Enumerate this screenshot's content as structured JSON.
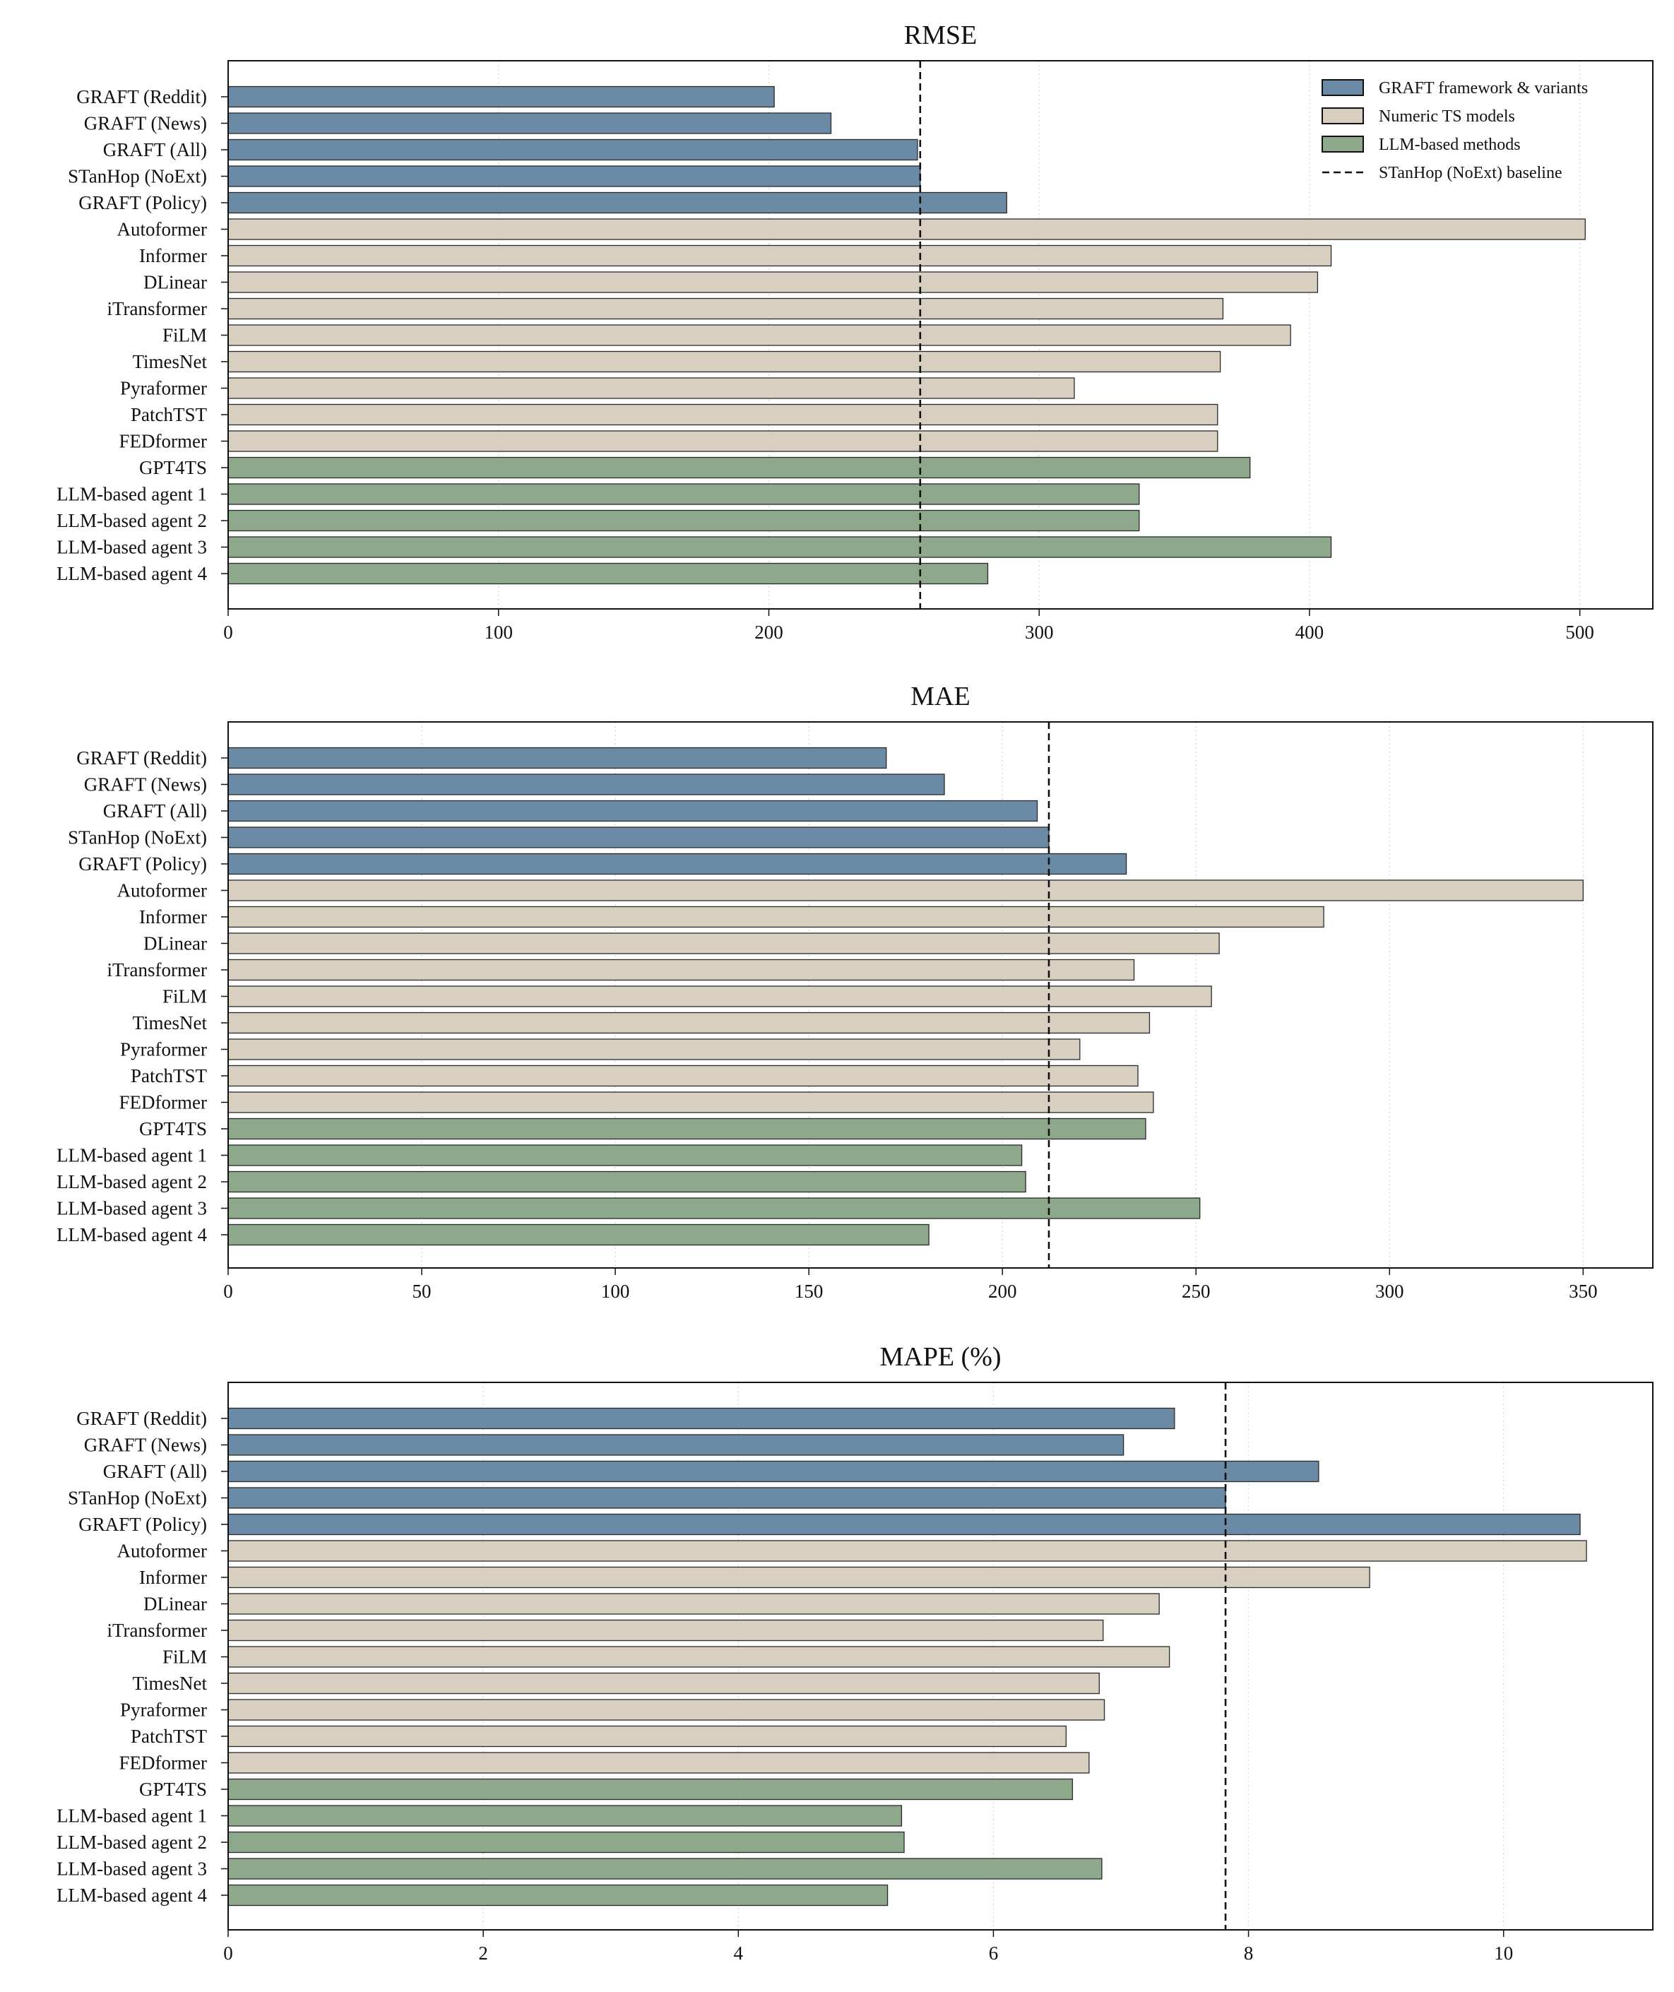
{
  "legend": {
    "placement": "top-right (first chart)",
    "entries": [
      {
        "label": "GRAFT framework & variants",
        "color": "#6a8aa5",
        "kind": "bar"
      },
      {
        "label": "Numeric TS models",
        "color": "#d8cfc1",
        "kind": "bar"
      },
      {
        "label": "LLM-based methods",
        "color": "#8da88a",
        "kind": "bar"
      },
      {
        "label": "STanHop (NoExt) baseline",
        "color": "#111111",
        "kind": "dashed-line"
      }
    ]
  },
  "chart_data": [
    {
      "type": "bar",
      "orientation": "horizontal",
      "title": "RMSE",
      "xlabel": "",
      "ylabel": "",
      "xlim": [
        0,
        527
      ],
      "xticks": [
        0,
        100,
        200,
        300,
        400,
        500
      ],
      "grid": "vertical dotted",
      "baseline": 256,
      "categories": [
        "GRAFT (Reddit)",
        "GRAFT (News)",
        "GRAFT (All)",
        "STanHop (NoExt)",
        "GRAFT (Policy)",
        "Autoformer",
        "Informer",
        "DLinear",
        "iTransformer",
        "FiLM",
        "TimesNet",
        "Pyraformer",
        "PatchTST",
        "FEDformer",
        "GPT4TS",
        "LLM-based agent 1",
        "LLM-based agent 2",
        "LLM-based agent 3",
        "LLM-based agent 4"
      ],
      "groups": [
        "graft",
        "graft",
        "graft",
        "graft",
        "graft",
        "numeric",
        "numeric",
        "numeric",
        "numeric",
        "numeric",
        "numeric",
        "numeric",
        "numeric",
        "numeric",
        "llm",
        "llm",
        "llm",
        "llm",
        "llm"
      ],
      "values": [
        202,
        223,
        255,
        256,
        288,
        502,
        408,
        403,
        368,
        393,
        367,
        313,
        366,
        366,
        378,
        337,
        337,
        408,
        281
      ]
    },
    {
      "type": "bar",
      "orientation": "horizontal",
      "title": "MAE",
      "xlabel": "",
      "ylabel": "",
      "xlim": [
        0,
        368
      ],
      "xticks": [
        0,
        50,
        100,
        150,
        200,
        250,
        300,
        350
      ],
      "grid": "vertical dotted",
      "baseline": 212,
      "categories": [
        "GRAFT (Reddit)",
        "GRAFT (News)",
        "GRAFT (All)",
        "STanHop (NoExt)",
        "GRAFT (Policy)",
        "Autoformer",
        "Informer",
        "DLinear",
        "iTransformer",
        "FiLM",
        "TimesNet",
        "Pyraformer",
        "PatchTST",
        "FEDformer",
        "GPT4TS",
        "LLM-based agent 1",
        "LLM-based agent 2",
        "LLM-based agent 3",
        "LLM-based agent 4"
      ],
      "groups": [
        "graft",
        "graft",
        "graft",
        "graft",
        "graft",
        "numeric",
        "numeric",
        "numeric",
        "numeric",
        "numeric",
        "numeric",
        "numeric",
        "numeric",
        "numeric",
        "llm",
        "llm",
        "llm",
        "llm",
        "llm"
      ],
      "values": [
        170,
        185,
        209,
        212,
        232,
        350,
        283,
        256,
        234,
        254,
        238,
        220,
        235,
        239,
        237,
        205,
        206,
        251,
        181
      ]
    },
    {
      "type": "bar",
      "orientation": "horizontal",
      "title": "MAPE (%)",
      "xlabel": "",
      "ylabel": "",
      "xlim": [
        0,
        11.17
      ],
      "xticks": [
        0,
        2,
        4,
        6,
        8,
        10
      ],
      "grid": "vertical dotted",
      "baseline": 7.82,
      "categories": [
        "GRAFT (Reddit)",
        "GRAFT (News)",
        "GRAFT (All)",
        "STanHop (NoExt)",
        "GRAFT (Policy)",
        "Autoformer",
        "Informer",
        "DLinear",
        "iTransformer",
        "FiLM",
        "TimesNet",
        "Pyraformer",
        "PatchTST",
        "FEDformer",
        "GPT4TS",
        "LLM-based agent 1",
        "LLM-based agent 2",
        "LLM-based agent 3",
        "LLM-based agent 4"
      ],
      "groups": [
        "graft",
        "graft",
        "graft",
        "graft",
        "graft",
        "numeric",
        "numeric",
        "numeric",
        "numeric",
        "numeric",
        "numeric",
        "numeric",
        "numeric",
        "numeric",
        "llm",
        "llm",
        "llm",
        "llm",
        "llm"
      ],
      "values": [
        7.42,
        7.02,
        8.55,
        7.82,
        10.6,
        10.65,
        8.95,
        7.3,
        6.86,
        7.38,
        6.83,
        6.87,
        6.57,
        6.75,
        6.62,
        5.28,
        5.3,
        6.85,
        5.17
      ]
    }
  ]
}
